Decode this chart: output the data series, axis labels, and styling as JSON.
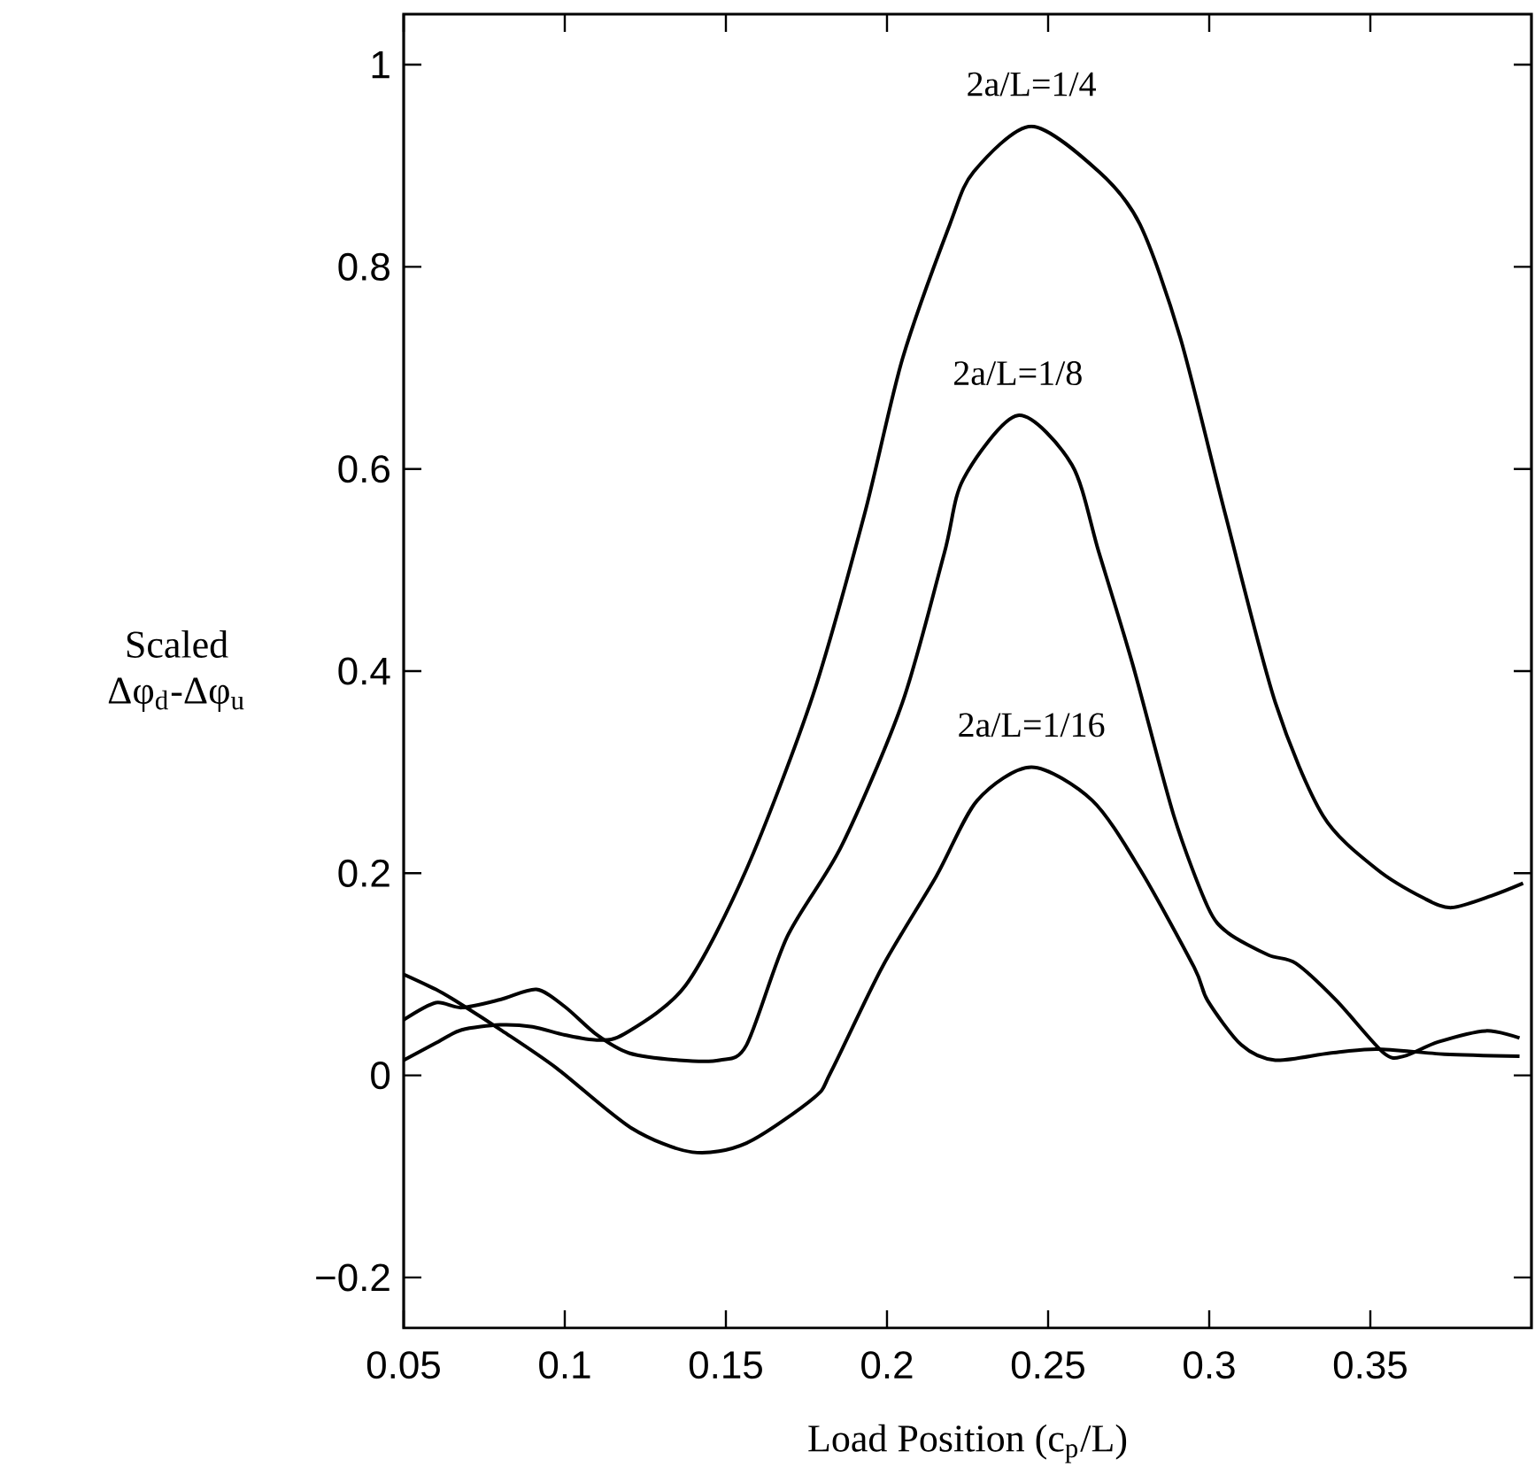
{
  "chart_data": {
    "type": "line",
    "xlabel": "Load Position (c$_{p}$/L)",
    "ylabel": "Scaled Δφ$_{d}$-Δφ$_{u}$",
    "xlim": [
      0.05,
      0.4
    ],
    "ylim": [
      -0.25,
      1.05
    ],
    "xticks": [
      0.05,
      0.1,
      0.15,
      0.2,
      0.25,
      0.3,
      0.35
    ],
    "yticks": [
      {
        "value": -0.2,
        "label": "−0.2"
      },
      0,
      0.2,
      0.4,
      0.6,
      0.8,
      1
    ],
    "marker": "none",
    "line_style": "solid",
    "series": [
      {
        "name": "2a/L=1/4",
        "color": "#000000",
        "x": [
          0.05,
          0.06,
          0.068,
          0.08,
          0.09,
          0.1,
          0.11,
          0.1185,
          0.1375,
          0.1564,
          0.177,
          0.193,
          0.2048,
          0.2195,
          0.2269,
          0.2448,
          0.2658,
          0.2785,
          0.291,
          0.305,
          0.3205,
          0.3353,
          0.352,
          0.3668,
          0.3753,
          0.3879,
          0.3974
        ],
        "values": [
          0.015,
          0.032,
          0.045,
          0.05,
          0.048,
          0.04,
          0.035,
          0.041,
          0.089,
          0.204,
          0.376,
          0.555,
          0.709,
          0.842,
          0.894,
          0.939,
          0.894,
          0.842,
          0.73,
          0.555,
          0.369,
          0.257,
          0.204,
          0.175,
          0.166,
          0.178,
          0.19
        ]
      },
      {
        "name": "2a/L=1/8",
        "color": "#000000",
        "x": [
          0.05,
          0.06,
          0.068,
          0.08,
          0.0912,
          0.1,
          0.11,
          0.12,
          0.1354,
          0.148,
          0.1564,
          0.169,
          0.1859,
          0.2048,
          0.2178,
          0.2237,
          0.2406,
          0.2574,
          0.2658,
          0.2763,
          0.289,
          0.2995,
          0.3058,
          0.3184,
          0.3268,
          0.3395,
          0.3542,
          0.3605,
          0.371,
          0.3858,
          0.3963
        ],
        "values": [
          0.055,
          0.072,
          0.067,
          0.075,
          0.085,
          0.068,
          0.04,
          0.022,
          0.015,
          0.015,
          0.03,
          0.137,
          0.227,
          0.369,
          0.517,
          0.59,
          0.653,
          0.604,
          0.517,
          0.406,
          0.257,
          0.167,
          0.141,
          0.119,
          0.111,
          0.074,
          0.022,
          0.019,
          0.033,
          0.044,
          0.037
        ]
      },
      {
        "name": "2a/L=1/16",
        "color": "#000000",
        "x": [
          0.05,
          0.06,
          0.068,
          0.0806,
          0.0975,
          0.1206,
          0.1396,
          0.1564,
          0.1774,
          0.1827,
          0.1985,
          0.2153,
          0.228,
          0.2448,
          0.2637,
          0.2785,
          0.2953,
          0.2995,
          0.31,
          0.3205,
          0.3374,
          0.352,
          0.373,
          0.3963
        ],
        "values": [
          0.1,
          0.085,
          0.07,
          0.044,
          0.007,
          -0.052,
          -0.076,
          -0.067,
          -0.022,
          0.004,
          0.107,
          0.197,
          0.272,
          0.305,
          0.272,
          0.204,
          0.107,
          0.074,
          0.03,
          0.015,
          0.022,
          0.026,
          0.021,
          0.019
        ]
      }
    ]
  }
}
